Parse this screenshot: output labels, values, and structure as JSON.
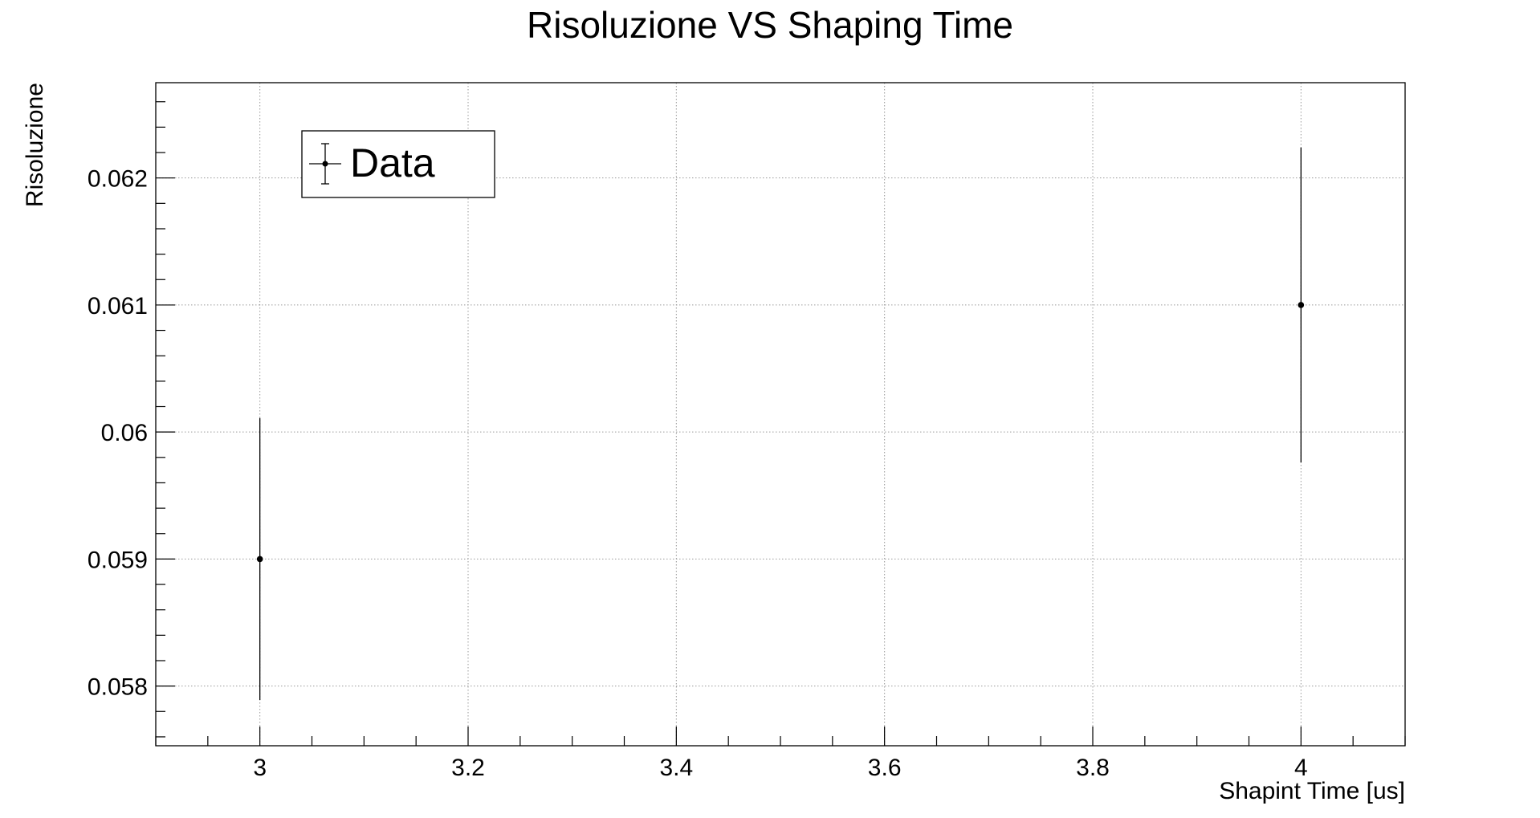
{
  "chart_data": {
    "type": "scatter",
    "title": "Risoluzione VS Shaping Time",
    "xlabel": "Shapint Time [us]",
    "ylabel": "Risoluzione",
    "xlim": [
      2.9,
      4.1
    ],
    "ylim": [
      0.05753,
      0.06275
    ],
    "x_ticks": [
      3,
      3.2,
      3.4,
      3.6,
      3.8,
      4
    ],
    "x_tick_labels": [
      "3",
      "3.2",
      "3.4",
      "3.6",
      "3.8",
      "4"
    ],
    "y_ticks": [
      0.058,
      0.059,
      0.06,
      0.061,
      0.062
    ],
    "y_tick_labels": [
      "0.058",
      "0.059",
      "0.06",
      "0.061",
      "0.062"
    ],
    "grid": true,
    "legend_position": "top-left",
    "series": [
      {
        "name": "Data",
        "color": "#000000",
        "points": [
          {
            "x": 3,
            "y": 0.059,
            "err": 0.00111
          },
          {
            "x": 4,
            "y": 0.061,
            "err": 0.00124
          }
        ]
      }
    ]
  }
}
